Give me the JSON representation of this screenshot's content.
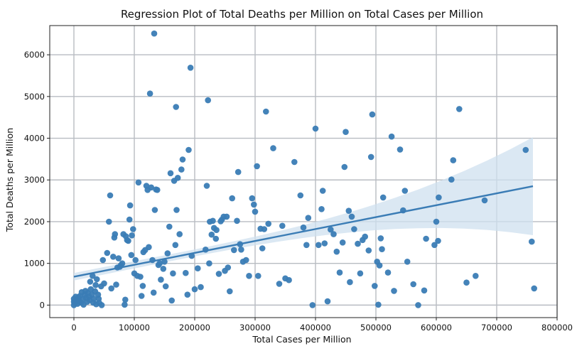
{
  "chart_data": {
    "type": "scatter",
    "title": "Regression Plot of Total Deaths per Million on Total Cases per Million",
    "xlabel": "Total Cases per Million",
    "ylabel": "Total Deaths per Million",
    "xlim": [
      -40000,
      800000
    ],
    "ylim": [
      -300,
      6700
    ],
    "xticks": [
      0,
      100000,
      200000,
      300000,
      400000,
      500000,
      600000,
      700000,
      800000
    ],
    "yticks": [
      0,
      1000,
      2000,
      3000,
      4000,
      5000,
      6000
    ],
    "grid": true,
    "point_color": "#3a7cb5",
    "line_color": "#3a7cb5",
    "band_color": "#cfe0ef",
    "regression": {
      "x": [
        0,
        760000
      ],
      "y": [
        680,
        2850
      ],
      "ci_lower": [
        580,
        2380
      ],
      "ci_upper": [
        780,
        3350
      ]
    },
    "points": [
      [
        0,
        0
      ],
      [
        0,
        80
      ],
      [
        0,
        150
      ],
      [
        2000,
        50
      ],
      [
        3000,
        200
      ],
      [
        5000,
        120
      ],
      [
        6000,
        30
      ],
      [
        8000,
        180
      ],
      [
        9000,
        90
      ],
      [
        10000,
        220
      ],
      [
        12000,
        60
      ],
      [
        13000,
        310
      ],
      [
        15000,
        140
      ],
      [
        16000,
        10
      ],
      [
        18000,
        250
      ],
      [
        19000,
        340
      ],
      [
        20000,
        170
      ],
      [
        22000,
        80
      ],
      [
        23000,
        290
      ],
      [
        25000,
        200
      ],
      [
        26000,
        120
      ],
      [
        27000,
        560
      ],
      [
        28000,
        380
      ],
      [
        30000,
        250
      ],
      [
        31000,
        700
      ],
      [
        32000,
        60
      ],
      [
        33000,
        150
      ],
      [
        35000,
        330
      ],
      [
        36000,
        480
      ],
      [
        37000,
        20
      ],
      [
        38000,
        620
      ],
      [
        40000,
        250
      ],
      [
        41000,
        150
      ],
      [
        42000,
        50
      ],
      [
        45000,
        450
      ],
      [
        46000,
        0
      ],
      [
        48000,
        1080
      ],
      [
        50000,
        520
      ],
      [
        55000,
        1250
      ],
      [
        58000,
        2000
      ],
      [
        60000,
        2630
      ],
      [
        62000,
        400
      ],
      [
        65000,
        1160
      ],
      [
        67000,
        1620
      ],
      [
        68000,
        1700
      ],
      [
        70000,
        490
      ],
      [
        72000,
        900
      ],
      [
        74000,
        1120
      ],
      [
        76000,
        920
      ],
      [
        78000,
        960
      ],
      [
        80000,
        1000
      ],
      [
        82000,
        1700
      ],
      [
        84000,
        10
      ],
      [
        85000,
        130
      ],
      [
        86000,
        1650
      ],
      [
        88000,
        1560
      ],
      [
        90000,
        1540
      ],
      [
        92000,
        2050
      ],
      [
        93000,
        2390
      ],
      [
        95000,
        1200
      ],
      [
        96000,
        1670
      ],
      [
        98000,
        1820
      ],
      [
        100000,
        760
      ],
      [
        102000,
        1080
      ],
      [
        105000,
        700
      ],
      [
        107000,
        2940
      ],
      [
        110000,
        680
      ],
      [
        112000,
        220
      ],
      [
        114000,
        460
      ],
      [
        115000,
        1270
      ],
      [
        118000,
        1320
      ],
      [
        120000,
        2860
      ],
      [
        122000,
        2760
      ],
      [
        124000,
        1390
      ],
      [
        126000,
        5070
      ],
      [
        128000,
        2820
      ],
      [
        130000,
        1080
      ],
      [
        132000,
        300
      ],
      [
        133000,
        6510
      ],
      [
        134000,
        2280
      ],
      [
        136000,
        2770
      ],
      [
        138000,
        2760
      ],
      [
        140000,
        960
      ],
      [
        142000,
        1000
      ],
      [
        144000,
        610
      ],
      [
        148000,
        870
      ],
      [
        150000,
        1040
      ],
      [
        152000,
        450
      ],
      [
        155000,
        1240
      ],
      [
        158000,
        1880
      ],
      [
        160000,
        3160
      ],
      [
        162000,
        110
      ],
      [
        164000,
        760
      ],
      [
        166000,
        2980
      ],
      [
        168000,
        1440
      ],
      [
        169000,
        4750
      ],
      [
        170000,
        2280
      ],
      [
        172000,
        3050
      ],
      [
        175000,
        1700
      ],
      [
        178000,
        3250
      ],
      [
        180000,
        3490
      ],
      [
        185000,
        770
      ],
      [
        188000,
        250
      ],
      [
        190000,
        3720
      ],
      [
        193000,
        5690
      ],
      [
        195000,
        1180
      ],
      [
        200000,
        380
      ],
      [
        205000,
        880
      ],
      [
        210000,
        430
      ],
      [
        218000,
        1330
      ],
      [
        220000,
        2860
      ],
      [
        222000,
        4910
      ],
      [
        224000,
        1000
      ],
      [
        225000,
        2000
      ],
      [
        228000,
        1690
      ],
      [
        230000,
        2020
      ],
      [
        232000,
        1850
      ],
      [
        235000,
        1590
      ],
      [
        236000,
        1800
      ],
      [
        240000,
        750
      ],
      [
        243000,
        2010
      ],
      [
        245000,
        2050
      ],
      [
        248000,
        2120
      ],
      [
        250000,
        820
      ],
      [
        253000,
        2120
      ],
      [
        255000,
        900
      ],
      [
        258000,
        330
      ],
      [
        262000,
        2560
      ],
      [
        265000,
        1320
      ],
      [
        270000,
        2020
      ],
      [
        272000,
        3190
      ],
      [
        275000,
        1460
      ],
      [
        277000,
        1330
      ],
      [
        280000,
        1040
      ],
      [
        285000,
        1080
      ],
      [
        290000,
        700
      ],
      [
        295000,
        2560
      ],
      [
        298000,
        2410
      ],
      [
        300000,
        2240
      ],
      [
        303000,
        3330
      ],
      [
        305000,
        700
      ],
      [
        309000,
        1830
      ],
      [
        312000,
        1360
      ],
      [
        315000,
        1820
      ],
      [
        318000,
        4640
      ],
      [
        322000,
        1950
      ],
      [
        330000,
        3760
      ],
      [
        340000,
        510
      ],
      [
        345000,
        1900
      ],
      [
        350000,
        640
      ],
      [
        356000,
        600
      ],
      [
        365000,
        3430
      ],
      [
        375000,
        2630
      ],
      [
        380000,
        1860
      ],
      [
        385000,
        1440
      ],
      [
        388000,
        2090
      ],
      [
        395000,
        0
      ],
      [
        400000,
        4230
      ],
      [
        405000,
        1440
      ],
      [
        410000,
        2300
      ],
      [
        412000,
        2740
      ],
      [
        415000,
        1480
      ],
      [
        420000,
        90
      ],
      [
        425000,
        1810
      ],
      [
        430000,
        1700
      ],
      [
        435000,
        1280
      ],
      [
        440000,
        780
      ],
      [
        445000,
        1500
      ],
      [
        448000,
        3310
      ],
      [
        450000,
        4150
      ],
      [
        455000,
        2260
      ],
      [
        457000,
        550
      ],
      [
        460000,
        2120
      ],
      [
        464000,
        1820
      ],
      [
        470000,
        1470
      ],
      [
        474000,
        760
      ],
      [
        478000,
        1560
      ],
      [
        482000,
        1640
      ],
      [
        488000,
        1310
      ],
      [
        492000,
        3550
      ],
      [
        494000,
        4570
      ],
      [
        498000,
        460
      ],
      [
        502000,
        1040
      ],
      [
        504000,
        10
      ],
      [
        506000,
        950
      ],
      [
        508000,
        1600
      ],
      [
        510000,
        1340
      ],
      [
        512000,
        2580
      ],
      [
        520000,
        780
      ],
      [
        526000,
        4040
      ],
      [
        530000,
        340
      ],
      [
        540000,
        3730
      ],
      [
        545000,
        2270
      ],
      [
        548000,
        2740
      ],
      [
        552000,
        1040
      ],
      [
        562000,
        500
      ],
      [
        570000,
        0
      ],
      [
        580000,
        350
      ],
      [
        583000,
        1590
      ],
      [
        597000,
        1440
      ],
      [
        600000,
        2000
      ],
      [
        603000,
        1540
      ],
      [
        604000,
        2580
      ],
      [
        625000,
        3010
      ],
      [
        628000,
        3470
      ],
      [
        638000,
        4700
      ],
      [
        650000,
        540
      ],
      [
        665000,
        700
      ],
      [
        680000,
        2510
      ],
      [
        748000,
        3720
      ],
      [
        758000,
        1520
      ],
      [
        762000,
        400
      ]
    ]
  }
}
